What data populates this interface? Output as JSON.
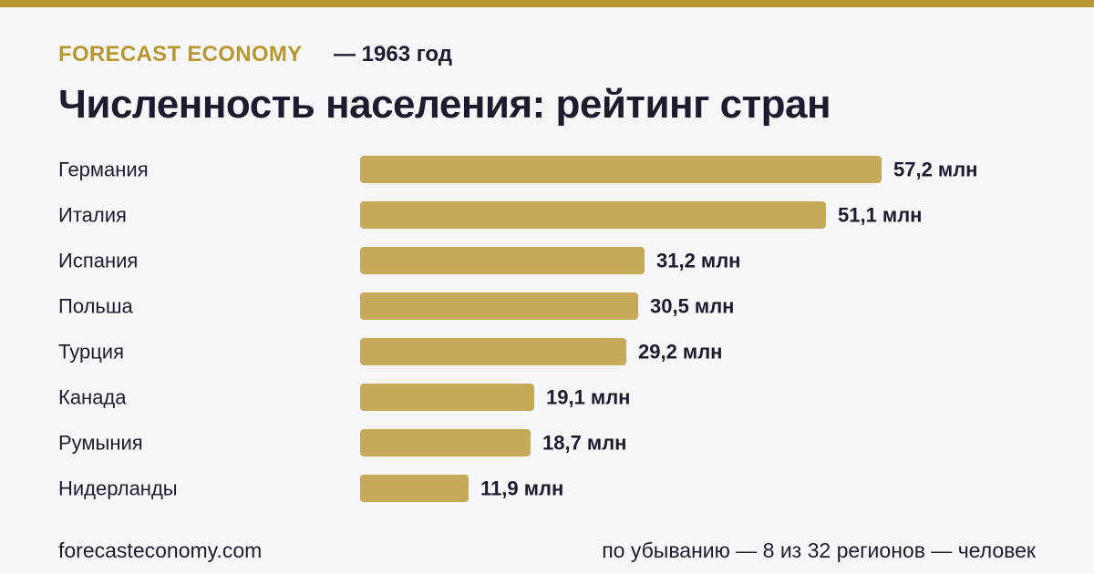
{
  "header": {
    "brand": "FORECAST ECONOMY",
    "year": "— 1963 год",
    "title": "Численность населения: рейтинг стран"
  },
  "footer": {
    "site": "forecasteconomy.com",
    "note": "по убыванию — 8 из 32 регионов — человек"
  },
  "colors": {
    "accent": "#b8972f",
    "bar": "#c6a95b",
    "text": "#1c1c2e",
    "background": "#f7f7fa"
  },
  "chart_data": {
    "type": "bar",
    "orientation": "horizontal",
    "categories": [
      "Германия",
      "Италия",
      "Испания",
      "Польша",
      "Турция",
      "Канада",
      "Румыния",
      "Нидерланды"
    ],
    "values": [
      57.2,
      51.1,
      31.2,
      30.5,
      29.2,
      19.1,
      18.7,
      11.9
    ],
    "value_labels": [
      "57,2 млн",
      "51,1 млн",
      "31,2 млн",
      "30,5 млн",
      "29,2 млн",
      "19,1 млн",
      "18,7 млн",
      "11,9 млн"
    ],
    "title": "Численность населения: рейтинг стран",
    "xlabel": "",
    "ylabel": "",
    "grid": false,
    "legend": "none"
  }
}
